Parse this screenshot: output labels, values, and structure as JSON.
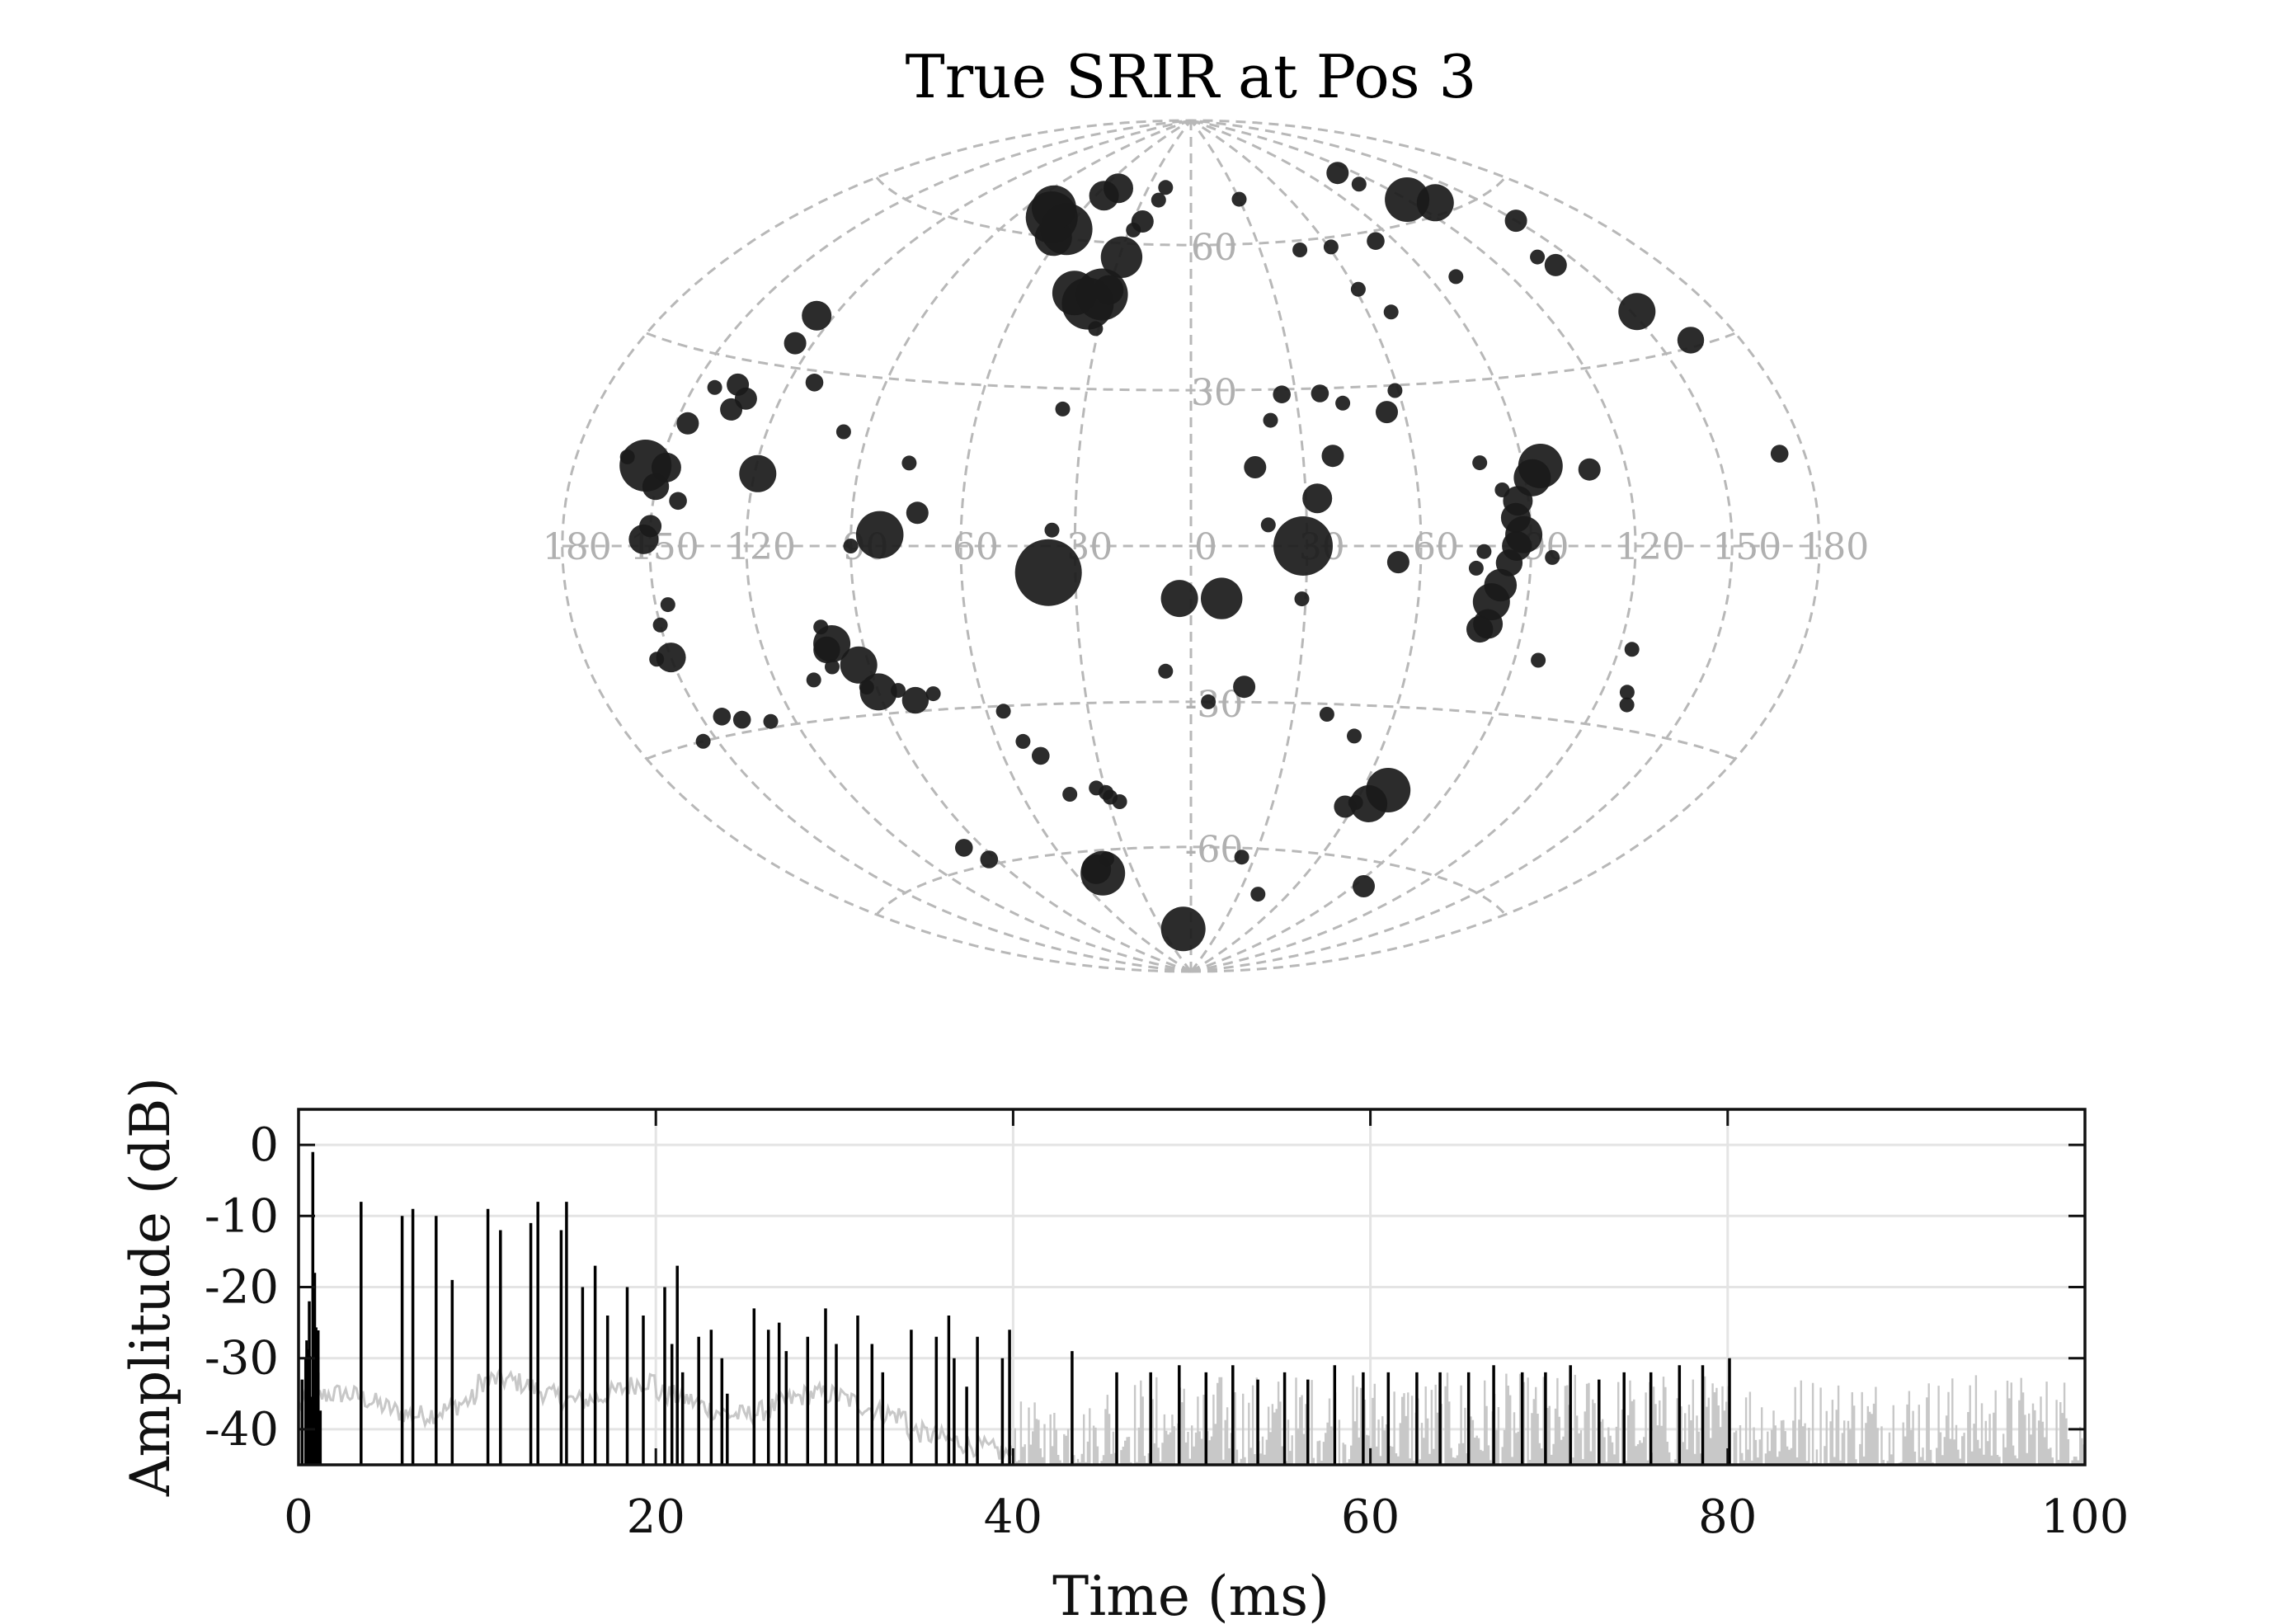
{
  "chart_data": [
    {
      "type": "scatter",
      "title": "True SRIR at Pos 3",
      "projection": "Hammer-Aitoff",
      "azimuth_ticks": [
        180,
        150,
        120,
        90,
        60,
        30,
        0,
        30,
        60,
        90,
        120,
        150,
        180
      ],
      "elevation_ticks": [
        60,
        30,
        0,
        -30,
        -60
      ],
      "grid": true,
      "point_color": "#1a1a1a",
      "grid_color": "#b8b8b8",
      "points": [
        {
          "az": -29,
          "el": 0,
          "s": 4
        },
        {
          "az": -33,
          "el": 9,
          "s": 2
        },
        {
          "az": -38,
          "el": 17,
          "s": 1.5
        },
        {
          "az": -43,
          "el": 27,
          "s": 1
        },
        {
          "az": -37,
          "el": 29,
          "s": 1.2
        },
        {
          "az": -26,
          "el": 29,
          "s": 1.2
        },
        {
          "az": -22,
          "el": 24,
          "s": 1
        },
        {
          "az": -17,
          "el": 15,
          "s": 1.5
        },
        {
          "az": -20,
          "el": 4,
          "s": 1
        },
        {
          "az": -8,
          "el": -10,
          "s": 2.8
        },
        {
          "az": -5,
          "el": -30,
          "s": 1
        },
        {
          "az": -15,
          "el": -27,
          "s": 1.5
        },
        {
          "az": -29,
          "el": -10,
          "s": 1
        },
        {
          "az": -55,
          "el": 25,
          "s": 1.5
        },
        {
          "az": -59,
          "el": 29,
          "s": 1
        },
        {
          "az": -54,
          "el": -3,
          "s": 1.5
        },
        {
          "az": -61,
          "el": 49,
          "s": 1
        },
        {
          "az": -68,
          "el": 44,
          "s": 1
        },
        {
          "az": -78,
          "el": 15,
          "s": 1
        },
        {
          "az": -83,
          "el": 10,
          "s": 1
        },
        {
          "az": -95,
          "el": 14,
          "s": 3
        },
        {
          "az": -92,
          "el": 12,
          "s": 2.5
        },
        {
          "az": -87,
          "el": 8,
          "s": 2
        },
        {
          "az": -86,
          "el": 5,
          "s": 2
        },
        {
          "az": -88,
          "el": 2,
          "s": 2.5
        },
        {
          "az": -86,
          "el": 0,
          "s": 2
        },
        {
          "az": -84,
          "el": -3,
          "s": 1.8
        },
        {
          "az": -82,
          "el": -7,
          "s": 2.2
        },
        {
          "az": -80,
          "el": -10,
          "s": 2.5
        },
        {
          "az": -80,
          "el": -14,
          "s": 2
        },
        {
          "az": -78,
          "el": -15,
          "s": 1.8
        },
        {
          "az": -77,
          "el": -1,
          "s": 1
        },
        {
          "az": -75,
          "el": -4,
          "s": 1
        },
        {
          "az": -96,
          "el": -2,
          "s": 1
        },
        {
          "az": -109,
          "el": 13,
          "s": 1.5
        },
        {
          "az": -124,
          "el": -17,
          "s": 1
        },
        {
          "az": -128,
          "el": -24,
          "s": 1
        },
        {
          "az": -130,
          "el": -26,
          "s": 1
        },
        {
          "az": -97,
          "el": -20,
          "s": 1
        },
        {
          "az": -171,
          "el": 13,
          "s": 1.2
        },
        {
          "az": -162,
          "el": 31,
          "s": 1.8
        },
        {
          "az": -152,
          "el": 37,
          "s": 2.5
        },
        {
          "az": -138,
          "el": 49,
          "s": 1
        },
        {
          "az": -141,
          "el": 47,
          "s": 1.5
        },
        {
          "az": -150,
          "el": 55,
          "s": 1.5
        },
        {
          "az": -130,
          "el": 62,
          "s": 2.5
        },
        {
          "az": -120,
          "el": 64,
          "s": 3
        },
        {
          "az": -110,
          "el": 72,
          "s": 1.5
        },
        {
          "az": -110,
          "el": 69,
          "s": 1
        },
        {
          "az": -100,
          "el": 49,
          "s": 1
        },
        {
          "az": -82,
          "el": 58,
          "s": 1.2
        },
        {
          "az": -61,
          "el": 58,
          "s": 1
        },
        {
          "az": -47,
          "el": 58,
          "s": 1
        },
        {
          "az": -30,
          "el": 70,
          "s": 1
        },
        {
          "az": -69,
          "el": -46,
          "s": 3
        },
        {
          "az": -65,
          "el": -49,
          "s": 2.5
        },
        {
          "az": -60,
          "el": -49,
          "s": 1
        },
        {
          "az": -57,
          "el": -50,
          "s": 1.5
        },
        {
          "az": -40,
          "el": -32,
          "s": 1
        },
        {
          "az": -50,
          "el": -36,
          "s": 1
        },
        {
          "az": -95,
          "el": -65,
          "s": 1.5
        },
        {
          "az": -42,
          "el": -70,
          "s": 1
        },
        {
          "az": -24,
          "el": -62,
          "s": 1
        },
        {
          "az": 3,
          "el": -10,
          "s": 2.5
        },
        {
          "az": 7,
          "el": -24,
          "s": 1
        },
        {
          "az": 8,
          "el": -79,
          "s": 3
        },
        {
          "az": 18,
          "el": 73,
          "s": 1
        },
        {
          "az": 20,
          "el": 70,
          "s": 1
        },
        {
          "az": 25,
          "el": 65,
          "s": 1.5
        },
        {
          "az": 28,
          "el": 63,
          "s": 1
        },
        {
          "az": 29,
          "el": 57,
          "s": 2.8
        },
        {
          "az": 30,
          "el": 50,
          "s": 2
        },
        {
          "az": 32,
          "el": 49,
          "s": 3.5
        },
        {
          "az": 36,
          "el": 47,
          "s": 3.5
        },
        {
          "az": 42,
          "el": 49,
          "s": 3
        },
        {
          "az": 50,
          "el": 72,
          "s": 2
        },
        {
          "az": 55,
          "el": 70,
          "s": 2
        },
        {
          "az": 60,
          "el": 62,
          "s": 3.5
        },
        {
          "az": 63,
          "el": 60,
          "s": 2.5
        },
        {
          "az": 72,
          "el": 64,
          "s": 3.5
        },
        {
          "az": 76,
          "el": 66,
          "s": 3
        },
        {
          "az": 36,
          "el": 26,
          "s": 1
        },
        {
          "az": 31,
          "el": 42,
          "s": 1
        },
        {
          "az": 37,
          "el": -5,
          "s": 4.5
        },
        {
          "az": 36,
          "el": 3,
          "s": 1
        },
        {
          "az": 55,
          "el": -31,
          "s": 1
        },
        {
          "az": 52,
          "el": -37,
          "s": 1
        },
        {
          "az": 48,
          "el": -40,
          "s": 1.2
        },
        {
          "az": 43,
          "el": -48,
          "s": 1
        },
        {
          "az": 33,
          "el": -47,
          "s": 1
        },
        {
          "az": 30,
          "el": -48,
          "s": 1
        },
        {
          "az": 29,
          "el": -49,
          "s": 1
        },
        {
          "az": 26,
          "el": -50,
          "s": 1
        },
        {
          "az": 40,
          "el": -62,
          "s": 1
        },
        {
          "az": 46,
          "el": -65,
          "s": 3
        },
        {
          "az": 48,
          "el": -64,
          "s": 2
        },
        {
          "az": 76,
          "el": 15,
          "s": 1
        },
        {
          "az": 72,
          "el": 6,
          "s": 1.5
        },
        {
          "az": 82,
          "el": 2,
          "s": 3.2
        },
        {
          "az": 90,
          "el": 0,
          "s": 1
        },
        {
          "az": 97,
          "el": 20,
          "s": 1
        },
        {
          "az": 74,
          "el": -27,
          "s": 1
        },
        {
          "az": 80,
          "el": -28,
          "s": 1.8
        },
        {
          "az": 90,
          "el": -26,
          "s": 2.5
        },
        {
          "az": 93,
          "el": -21,
          "s": 2.5
        },
        {
          "az": 99,
          "el": -17,
          "s": 2.5
        },
        {
          "az": 101,
          "el": -18,
          "s": 1.8
        },
        {
          "az": 93,
          "el": -25,
          "s": 1
        },
        {
          "az": 101,
          "el": -14,
          "s": 1
        },
        {
          "az": 101,
          "el": -21,
          "s": 1
        },
        {
          "az": 108,
          "el": -23,
          "s": 1
        },
        {
          "az": 84,
          "el": -26,
          "s": 1
        },
        {
          "az": 112,
          "el": 28,
          "s": 1.2
        },
        {
          "az": 119,
          "el": 12,
          "s": 2.5
        },
        {
          "az": 126,
          "el": 39,
          "s": 2
        },
        {
          "az": 126,
          "el": 34,
          "s": 1.5
        },
        {
          "az": 131,
          "el": 24,
          "s": 1.5
        },
        {
          "az": 134,
          "el": 22,
          "s": 1.5
        },
        {
          "az": 136,
          "el": 26,
          "s": 1.5
        },
        {
          "az": 143,
          "el": 25,
          "s": 1
        },
        {
          "az": 146,
          "el": 19,
          "s": 1.5
        },
        {
          "az": 148,
          "el": 12,
          "s": 2
        },
        {
          "az": 150,
          "el": 9,
          "s": 1.8
        },
        {
          "az": 155,
          "el": 12,
          "s": 3.5
        },
        {
          "az": 162,
          "el": 13,
          "s": 1
        },
        {
          "az": 142,
          "el": 7,
          "s": 1.2
        },
        {
          "az": 150,
          "el": 3,
          "s": 1.5
        },
        {
          "az": 152,
          "el": 1,
          "s": 2
        },
        {
          "az": 150,
          "el": -17,
          "s": 2
        },
        {
          "az": 150,
          "el": -12,
          "s": 1
        },
        {
          "az": 146,
          "el": -9,
          "s": 1
        },
        {
          "az": 155,
          "el": -17,
          "s": 1
        },
        {
          "az": 143,
          "el": -27,
          "s": 1.2
        },
        {
          "az": 137,
          "el": -28,
          "s": 1.2
        },
        {
          "az": 128,
          "el": -29,
          "s": 1
        },
        {
          "az": 155,
          "el": -30,
          "s": 1
        },
        {
          "az": 98,
          "el": -56,
          "s": 1.2
        },
        {
          "az": 93,
          "el": -59,
          "s": 1.2
        }
      ]
    },
    {
      "type": "line",
      "xlabel": "Time (ms)",
      "ylabel": "Amplitude (dB)",
      "xlim": [
        0,
        100
      ],
      "ylim": [
        -45,
        5
      ],
      "xticks": [
        0,
        20,
        40,
        60,
        80,
        100
      ],
      "yticks": [
        0,
        -10,
        -20,
        -30,
        -40
      ],
      "grid": true,
      "series": [
        {
          "color": "#000000",
          "spikes": [
            [
              0.2,
              -33
            ],
            [
              0.4,
              -30
            ],
            [
              0.6,
              -22
            ],
            [
              0.8,
              -1
            ],
            [
              0.9,
              -18
            ],
            [
              1.0,
              -28
            ],
            [
              1.1,
              -32
            ],
            [
              3.5,
              -8
            ],
            [
              5.8,
              -10
            ],
            [
              6.4,
              -9
            ],
            [
              7.7,
              -10
            ],
            [
              8.6,
              -19
            ],
            [
              10.6,
              -9
            ],
            [
              11.3,
              -12
            ],
            [
              13.0,
              -11
            ],
            [
              13.4,
              -8
            ],
            [
              14.7,
              -12
            ],
            [
              15.0,
              -8
            ],
            [
              15.9,
              -20
            ],
            [
              16.6,
              -17
            ],
            [
              17.3,
              -24
            ],
            [
              18.4,
              -20
            ],
            [
              19.3,
              -24
            ],
            [
              20.5,
              -20
            ],
            [
              20.9,
              -28
            ],
            [
              21.2,
              -17
            ],
            [
              21.5,
              -32
            ],
            [
              22.4,
              -27
            ],
            [
              23.1,
              -26
            ],
            [
              23.7,
              -30
            ],
            [
              24.0,
              -35
            ],
            [
              25.5,
              -23
            ],
            [
              26.3,
              -26
            ],
            [
              26.9,
              -25
            ],
            [
              27.3,
              -29
            ],
            [
              28.5,
              -27
            ],
            [
              29.5,
              -23
            ],
            [
              30.1,
              -28
            ],
            [
              31.3,
              -24
            ],
            [
              32.1,
              -28
            ],
            [
              32.7,
              -32
            ],
            [
              34.3,
              -26
            ],
            [
              35.7,
              -27
            ],
            [
              36.4,
              -24
            ],
            [
              36.7,
              -30
            ],
            [
              37.4,
              -34
            ],
            [
              38.0,
              -27
            ],
            [
              39.4,
              -30
            ],
            [
              39.8,
              -26
            ],
            [
              43.3,
              -29
            ],
            [
              45.8,
              -32
            ],
            [
              47.7,
              -32
            ],
            [
              49.3,
              -31
            ],
            [
              50.8,
              -32
            ],
            [
              52.3,
              -31
            ],
            [
              53.7,
              -33
            ],
            [
              55.2,
              -32
            ],
            [
              56.5,
              -33
            ],
            [
              58.0,
              -31
            ],
            [
              59.6,
              -32
            ],
            [
              61.0,
              -32
            ],
            [
              62.6,
              -32
            ],
            [
              63.9,
              -32
            ],
            [
              65.5,
              -32
            ],
            [
              66.9,
              -31
            ],
            [
              68.5,
              -32
            ],
            [
              69.8,
              -32
            ],
            [
              71.2,
              -31
            ],
            [
              72.8,
              -33
            ],
            [
              74.2,
              -32
            ],
            [
              75.7,
              -32
            ],
            [
              77.3,
              -31
            ],
            [
              78.6,
              -31
            ],
            [
              80.1,
              -30
            ]
          ]
        },
        {
          "color": "#c8c8c8",
          "floor_noise": "light gray noise floor around -37 dB to 40 ms, -45 to -32 dB beyond"
        }
      ]
    }
  ]
}
